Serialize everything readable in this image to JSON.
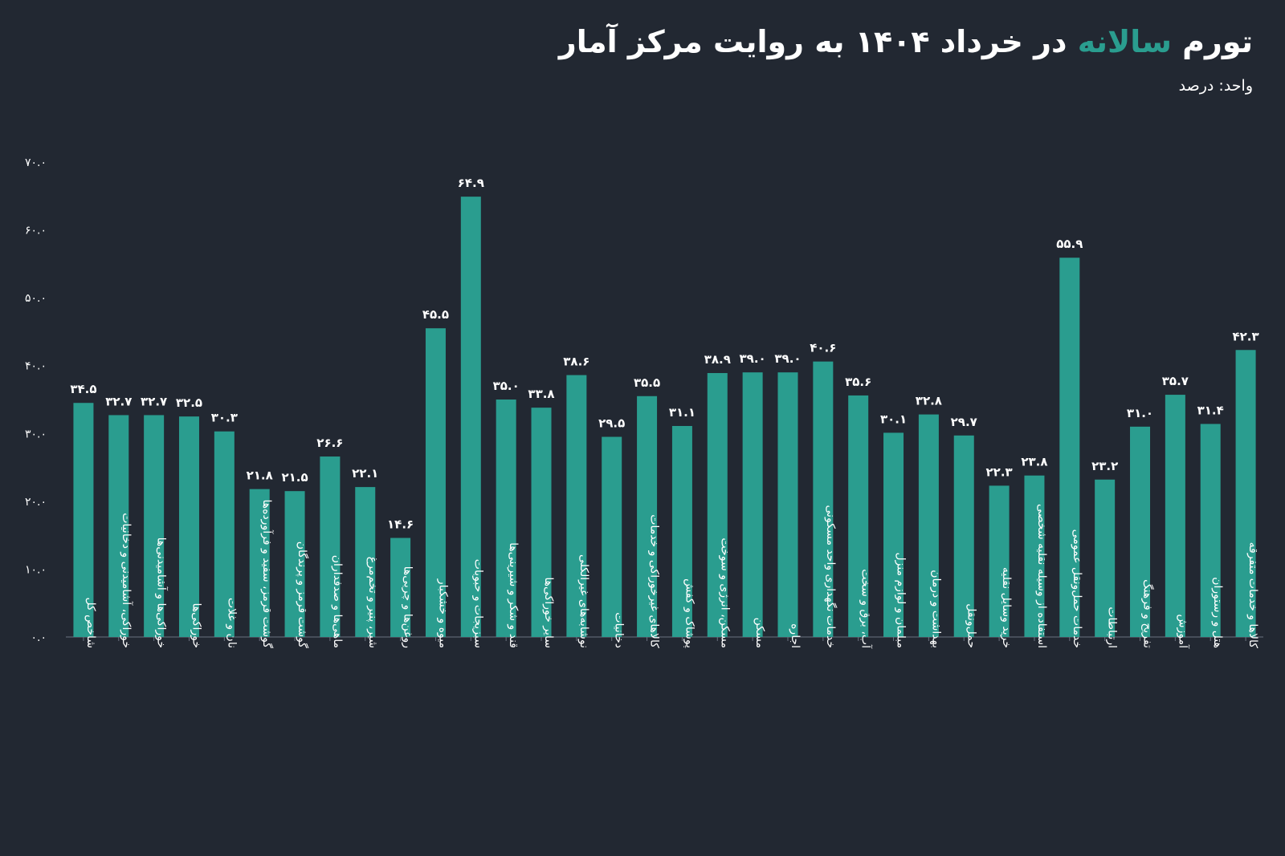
{
  "title": {
    "before": "تورم ",
    "highlight": "سالانه",
    "after": " در خرداد ۱۴۰۴ به روایت مرکز آمار"
  },
  "subtitle": "واحد: درصد",
  "colors": {
    "background": "#222832",
    "bar": "#2a9d8f",
    "highlight": "#2a9d8f",
    "text": "#ffffff",
    "axis": "#6b7280"
  },
  "chart_data": {
    "type": "bar",
    "ylim": [
      0,
      70
    ],
    "yticks": [
      0,
      10,
      20,
      30,
      40,
      50,
      60,
      70
    ],
    "ytick_labels": [
      "۰.۰",
      "۱۰.۰",
      "۲۰.۰",
      "۳۰.۰",
      "۴۰.۰",
      "۵۰.۰",
      "۶۰.۰",
      "۷۰.۰"
    ],
    "grid": false,
    "categories": [
      "شاخص کل",
      "خوراکی، آشامیدنی و دخانیات",
      "خوراکی‌ها و آشامیدنی‌ها",
      "خوراکی‌ها",
      "نان و غلات",
      "گوشت قرمز، سفید و فرآورده‌ها",
      "گوشت قرمز و پرندگان",
      "ماهی‌ها و صدفداران",
      "شیر، پنیر و تخم‌مرغ",
      "روغن‌ها و چربی‌ها",
      "میوه و خشکبار",
      "سبزیجات و حبوبات",
      "قند و شکر و شیرینی‌ها",
      "سایر خوراکی‌ها",
      "نوشابه‌های غیرالکلی",
      "دخانیات",
      "کالاهای غیرخوراکی و خدمات",
      "پوشاک و کفش",
      "مسکن، انرژی و سوخت",
      "مسکن",
      "اجاره",
      "خدمات نگهداری واحد مسکونی",
      "آب، برق و سخت",
      "مبلمان و لوازم منزل",
      "بهداشت و درمان",
      "حمل‌ونقل",
      "خرید وسایل نقلیه",
      "استفاده از وسیله نقلیه شخصی",
      "خدمات حمل‌ونقل عمومی",
      "ارتباطات",
      "تفریح و فرهنگ",
      "آموزش",
      "هتل و رستوران",
      "کالاها و خدمات متفرقه"
    ],
    "values": [
      34.5,
      32.7,
      32.7,
      32.5,
      30.3,
      21.8,
      21.5,
      26.6,
      22.1,
      14.6,
      45.5,
      64.9,
      35.0,
      33.8,
      38.6,
      29.5,
      35.5,
      31.1,
      38.9,
      39.0,
      39.0,
      40.6,
      35.6,
      30.1,
      32.8,
      29.7,
      22.3,
      23.8,
      55.9,
      23.2,
      31.0,
      35.7,
      31.4,
      42.3
    ],
    "value_labels": [
      "۳۴.۵",
      "۳۲.۷",
      "۳۲.۷",
      "۳۲.۵",
      "۳۰.۳",
      "۲۱.۸",
      "۲۱.۵",
      "۲۶.۶",
      "۲۲.۱",
      "۱۴.۶",
      "۴۵.۵",
      "۶۴.۹",
      "۳۵.۰",
      "۳۳.۸",
      "۳۸.۶",
      "۲۹.۵",
      "۳۵.۵",
      "۳۱.۱",
      "۳۸.۹",
      "۳۹.۰",
      "۳۹.۰",
      "۴۰.۶",
      "۳۵.۶",
      "۳۰.۱",
      "۳۲.۸",
      "۲۹.۷",
      "۲۲.۳",
      "۲۳.۸",
      "۵۵.۹",
      "۲۳.۲",
      "۳۱.۰",
      "۳۵.۷",
      "۳۱.۴",
      "۴۲.۳"
    ]
  }
}
